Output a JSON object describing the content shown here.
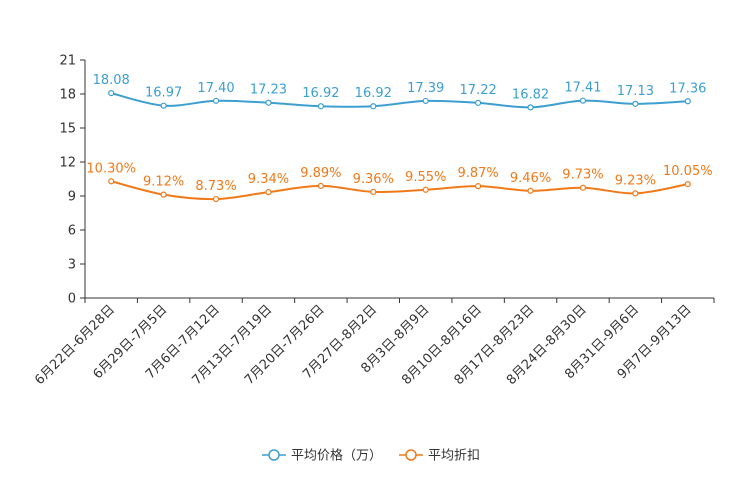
{
  "chart_data": {
    "type": "line",
    "title": "",
    "xlabel": "",
    "ylabel": "",
    "ylim": [
      0,
      21
    ],
    "yticks": [
      0,
      3,
      6,
      9,
      12,
      15,
      18,
      21
    ],
    "categories": [
      "6月22日-6月28日",
      "6月29日-7月5日",
      "7月6日-7月12日",
      "7月13日-7月19日",
      "7月20日-7月26日",
      "7月27日-8月2日",
      "8月3日-8月9日",
      "8月10日-8月16日",
      "8月17日-8月23日",
      "8月24日-8月30日",
      "8月31日-9月6日",
      "9月7日-9月13日"
    ],
    "series": [
      {
        "name": "平均价格（万）",
        "color": "#3d9fd0",
        "values": [
          18.08,
          16.97,
          17.4,
          17.23,
          16.92,
          16.92,
          17.39,
          17.22,
          16.82,
          17.41,
          17.13,
          17.36
        ],
        "labels": [
          "18.08",
          "16.97",
          "17.40",
          "17.23",
          "16.92",
          "16.92",
          "17.39",
          "17.22",
          "16.82",
          "17.41",
          "17.13",
          "17.36"
        ]
      },
      {
        "name": "平均折扣",
        "color": "#f07a1a",
        "values": [
          10.3,
          9.12,
          8.73,
          9.34,
          9.89,
          9.36,
          9.55,
          9.87,
          9.46,
          9.73,
          9.23,
          10.05
        ],
        "labels": [
          "10.30%",
          "9.12%",
          "8.73%",
          "9.34%",
          "9.89%",
          "9.36%",
          "9.55%",
          "9.87%",
          "9.46%",
          "9.73%",
          "9.23%",
          "10.05%"
        ]
      }
    ],
    "legend_position": "bottom"
  }
}
